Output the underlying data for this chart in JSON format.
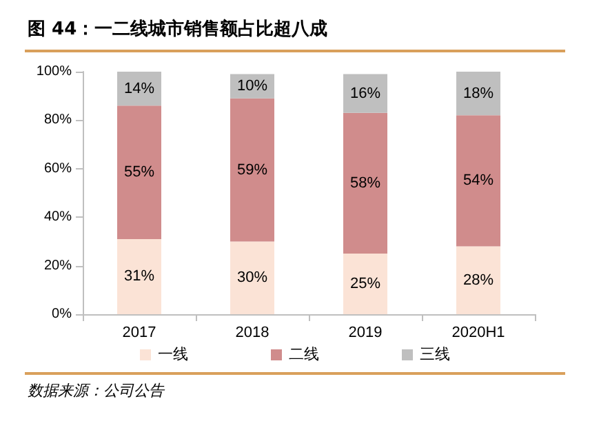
{
  "chart_data": {
    "type": "bar",
    "stacked": true,
    "title": "图 44：一二线城市销售额占比超八成",
    "categories": [
      "2017",
      "2018",
      "2019",
      "2020H1"
    ],
    "series": [
      {
        "name": "一线",
        "color": "#fbe3d6",
        "values": [
          31,
          30,
          25,
          28
        ],
        "value_labels": [
          "31%",
          "30%",
          "25%",
          "28%"
        ]
      },
      {
        "name": "二线",
        "color": "#d08c8c",
        "values": [
          55,
          59,
          58,
          54
        ],
        "value_labels": [
          "55%",
          "59%",
          "58%",
          "54%"
        ]
      },
      {
        "name": "三线",
        "color": "#bfbfbf",
        "values": [
          14,
          10,
          16,
          18
        ],
        "value_labels": [
          "14%",
          "10%",
          "16%",
          "18%"
        ]
      }
    ],
    "ylim": [
      0,
      100
    ],
    "yticks": [
      {
        "value": 0,
        "label": "0%"
      },
      {
        "value": 20,
        "label": "20%"
      },
      {
        "value": 40,
        "label": "40%"
      },
      {
        "value": 60,
        "label": "60%"
      },
      {
        "value": 80,
        "label": "80%"
      },
      {
        "value": 100,
        "label": "100%"
      }
    ],
    "legend": "bottom",
    "grid": false,
    "annotations": [
      "数据来源：公司公告"
    ]
  }
}
